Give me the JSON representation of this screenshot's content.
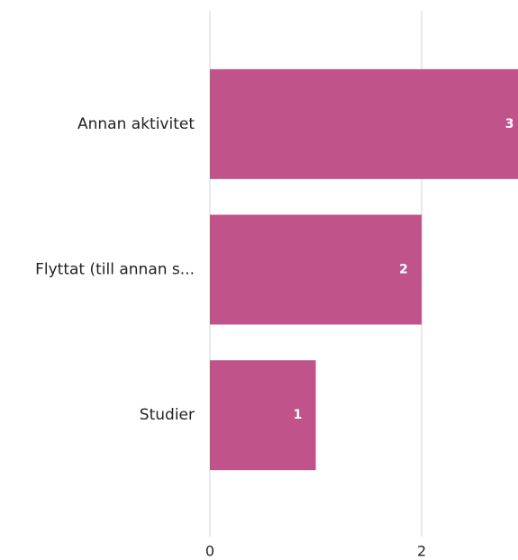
{
  "chart_data": {
    "type": "bar",
    "orientation": "horizontal",
    "categories": [
      "Annan aktivitet",
      "Flyttat (till annan s...",
      "Studier"
    ],
    "values": [
      3,
      2,
      1
    ],
    "color": "#c0538a",
    "xlim": [
      0,
      2.91
    ],
    "xticks": [
      0,
      2
    ],
    "grid": true
  }
}
